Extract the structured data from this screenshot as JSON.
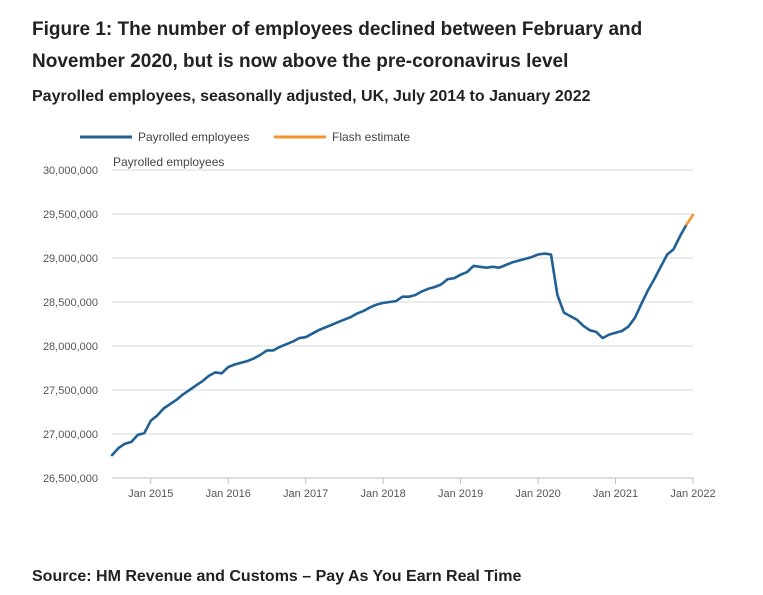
{
  "header": {
    "title": "Figure 1: The number of employees declined between February and November 2020, but is now above the pre-coronavirus level",
    "subtitle": "Payrolled employees, seasonally adjusted, UK, July 2014 to January 2022"
  },
  "footer": {
    "source": "Source: HM Revenue and Customs – Pay As You Earn Real Time"
  },
  "colors": {
    "payrolled": "#206095",
    "flash": "#f39431",
    "grid": "#d9d9d9",
    "axis": "#bebebe"
  },
  "chart_data": {
    "type": "line",
    "ylabel": "Payrolled employees",
    "ylim": [
      26500000,
      30000000
    ],
    "yticks": [
      {
        "value": 26500000,
        "label": "26,500,000"
      },
      {
        "value": 27000000,
        "label": "27,000,000"
      },
      {
        "value": 27500000,
        "label": "27,500,000"
      },
      {
        "value": 28000000,
        "label": "28,000,000"
      },
      {
        "value": 28500000,
        "label": "28,500,000"
      },
      {
        "value": 29000000,
        "label": "29,000,000"
      },
      {
        "value": 29500000,
        "label": "29,500,000"
      },
      {
        "value": 30000000,
        "label": "30,000,000"
      }
    ],
    "xlim": [
      "2014-07",
      "2022-01"
    ],
    "xticks": [
      {
        "value": "2015-01",
        "label": "Jan 2015"
      },
      {
        "value": "2016-01",
        "label": "Jan 2016"
      },
      {
        "value": "2017-01",
        "label": "Jan 2017"
      },
      {
        "value": "2018-01",
        "label": "Jan 2018"
      },
      {
        "value": "2019-01",
        "label": "Jan 2019"
      },
      {
        "value": "2020-01",
        "label": "Jan 2020"
      },
      {
        "value": "2021-01",
        "label": "Jan 2021"
      },
      {
        "value": "2022-01",
        "label": "Jan 2022"
      }
    ],
    "legend_position": "top-left",
    "grid": true,
    "series": [
      {
        "name": "Payrolled employees",
        "x": [
          "2014-07",
          "2014-08",
          "2014-09",
          "2014-10",
          "2014-11",
          "2014-12",
          "2015-01",
          "2015-02",
          "2015-03",
          "2015-04",
          "2015-05",
          "2015-06",
          "2015-07",
          "2015-08",
          "2015-09",
          "2015-10",
          "2015-11",
          "2015-12",
          "2016-01",
          "2016-02",
          "2016-03",
          "2016-04",
          "2016-05",
          "2016-06",
          "2016-07",
          "2016-08",
          "2016-09",
          "2016-10",
          "2016-11",
          "2016-12",
          "2017-01",
          "2017-02",
          "2017-03",
          "2017-04",
          "2017-05",
          "2017-06",
          "2017-07",
          "2017-08",
          "2017-09",
          "2017-10",
          "2017-11",
          "2017-12",
          "2018-01",
          "2018-02",
          "2018-03",
          "2018-04",
          "2018-05",
          "2018-06",
          "2018-07",
          "2018-08",
          "2018-09",
          "2018-10",
          "2018-11",
          "2018-12",
          "2019-01",
          "2019-02",
          "2019-03",
          "2019-04",
          "2019-05",
          "2019-06",
          "2019-07",
          "2019-08",
          "2019-09",
          "2019-10",
          "2019-11",
          "2019-12",
          "2020-01",
          "2020-02",
          "2020-03",
          "2020-04",
          "2020-05",
          "2020-06",
          "2020-07",
          "2020-08",
          "2020-09",
          "2020-10",
          "2020-11",
          "2020-12",
          "2021-01",
          "2021-02",
          "2021-03",
          "2021-04",
          "2021-05",
          "2021-06",
          "2021-07",
          "2021-08",
          "2021-09",
          "2021-10",
          "2021-11",
          "2021-12"
        ],
        "values": [
          26760000,
          26840000,
          26890000,
          26910000,
          26990000,
          27010000,
          27150000,
          27210000,
          27290000,
          27340000,
          27390000,
          27450000,
          27500000,
          27550000,
          27600000,
          27660000,
          27700000,
          27690000,
          27760000,
          27790000,
          27810000,
          27830000,
          27860000,
          27900000,
          27950000,
          27950000,
          27990000,
          28020000,
          28050000,
          28090000,
          28100000,
          28140000,
          28180000,
          28210000,
          28240000,
          28270000,
          28300000,
          28330000,
          28370000,
          28400000,
          28440000,
          28470000,
          28490000,
          28500000,
          28510000,
          28560000,
          28560000,
          28580000,
          28620000,
          28650000,
          28670000,
          28700000,
          28760000,
          28770000,
          28810000,
          28840000,
          28910000,
          28900000,
          28890000,
          28900000,
          28890000,
          28920000,
          28950000,
          28970000,
          28990000,
          29010000,
          29040000,
          29050000,
          29040000,
          28580000,
          28380000,
          28340000,
          28300000,
          28230000,
          28180000,
          28160000,
          28090000,
          28130000,
          28150000,
          28170000,
          28220000,
          28320000,
          28480000,
          28630000,
          28760000,
          28900000,
          29040000,
          29100000,
          29250000,
          29380000
        ]
      },
      {
        "name": "Flash estimate",
        "x": [
          "2021-12",
          "2022-01"
        ],
        "values": [
          29380000,
          29490000
        ]
      }
    ]
  }
}
